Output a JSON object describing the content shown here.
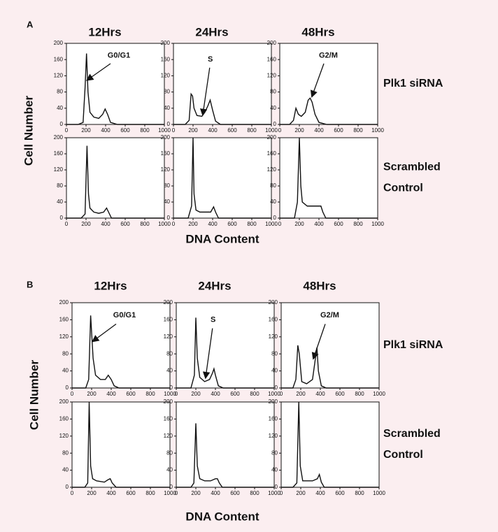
{
  "figures": [
    {
      "label": "A",
      "columns": [
        "12Hrs",
        "24Hrs",
        "48Hrs"
      ],
      "rows": [
        [
          "Plk1 siRNA"
        ],
        [
          "Scrambled",
          "Control"
        ]
      ],
      "ylabel": "Cell Number",
      "xlabel": "DNA Content"
    },
    {
      "label": "B",
      "columns": [
        "12Hrs",
        "24Hrs",
        "48Hrs"
      ],
      "rows": [
        [
          "Plk1 siRNA"
        ],
        [
          "Scrambled",
          "Control"
        ]
      ],
      "ylabel": "Cell Number",
      "xlabel": "DNA Content"
    }
  ],
  "chart_data": [
    {
      "type": "line",
      "color": "#111111",
      "x": [
        0,
        120,
        170,
        190,
        205,
        220,
        240,
        280,
        330,
        370,
        395,
        420,
        450,
        520,
        1000
      ],
      "values": [
        0,
        0,
        5,
        90,
        175,
        80,
        30,
        18,
        15,
        25,
        38,
        25,
        5,
        0,
        0
      ],
      "xlim": [
        0,
        1000
      ],
      "ylim": [
        0,
        200
      ],
      "xticks": [
        0,
        200,
        400,
        600,
        800,
        1000
      ],
      "yticks": [
        0,
        40,
        80,
        120,
        160,
        200
      ],
      "annotation": "G0/G1"
    },
    {
      "type": "line",
      "color": "#111111",
      "x": [
        0,
        120,
        160,
        180,
        195,
        210,
        240,
        290,
        320,
        350,
        375,
        400,
        430,
        480,
        1000
      ],
      "values": [
        0,
        0,
        10,
        75,
        70,
        40,
        22,
        20,
        30,
        45,
        60,
        35,
        8,
        0,
        0
      ],
      "xlim": [
        0,
        1000
      ],
      "ylim": [
        0,
        200
      ],
      "xticks": [
        0,
        200,
        400,
        600,
        800,
        1000
      ],
      "yticks": [
        0,
        40,
        80,
        120,
        160,
        200
      ],
      "annotation": "S"
    },
    {
      "type": "line",
      "color": "#111111",
      "x": [
        0,
        100,
        140,
        165,
        190,
        220,
        260,
        290,
        310,
        330,
        360,
        400,
        480,
        1000
      ],
      "values": [
        0,
        0,
        10,
        40,
        25,
        20,
        30,
        60,
        65,
        55,
        25,
        5,
        0,
        0
      ],
      "xlim": [
        0,
        1000
      ],
      "ylim": [
        0,
        200
      ],
      "xticks": [
        0,
        200,
        400,
        600,
        800,
        1000
      ],
      "yticks": [
        0,
        40,
        80,
        120,
        160,
        200
      ],
      "annotation": "G2/M"
    },
    {
      "type": "line",
      "color": "#111111",
      "x": [
        0,
        150,
        190,
        210,
        225,
        240,
        280,
        330,
        380,
        410,
        430,
        460,
        1000
      ],
      "values": [
        0,
        0,
        10,
        180,
        60,
        25,
        15,
        12,
        15,
        25,
        15,
        0,
        0
      ],
      "xlim": [
        0,
        1000
      ],
      "ylim": [
        0,
        200
      ],
      "xticks": [
        0,
        200,
        400,
        600,
        800,
        1000
      ],
      "yticks": [
        0,
        40,
        80,
        120,
        160,
        200
      ]
    },
    {
      "type": "line",
      "color": "#111111",
      "x": [
        0,
        150,
        185,
        200,
        210,
        230,
        270,
        320,
        380,
        410,
        430,
        460,
        1000
      ],
      "values": [
        0,
        0,
        30,
        200,
        60,
        20,
        15,
        15,
        15,
        28,
        15,
        0,
        0
      ],
      "xlim": [
        0,
        1000
      ],
      "ylim": [
        0,
        200
      ],
      "xticks": [
        0,
        200,
        400,
        600,
        800,
        1000
      ],
      "yticks": [
        0,
        40,
        80,
        120,
        160,
        200
      ]
    },
    {
      "type": "line",
      "color": "#111111",
      "x": [
        0,
        150,
        180,
        200,
        215,
        230,
        280,
        330,
        380,
        420,
        440,
        470,
        1000
      ],
      "values": [
        0,
        0,
        40,
        200,
        80,
        40,
        30,
        30,
        30,
        30,
        15,
        0,
        0
      ],
      "xlim": [
        0,
        1000
      ],
      "ylim": [
        0,
        200
      ],
      "xticks": [
        0,
        200,
        400,
        600,
        800,
        1000
      ],
      "yticks": [
        0,
        40,
        80,
        120,
        160,
        200
      ]
    },
    {
      "type": "line",
      "color": "#111111",
      "x": [
        0,
        140,
        170,
        190,
        200,
        215,
        240,
        290,
        340,
        370,
        400,
        430,
        480,
        1000
      ],
      "values": [
        0,
        0,
        20,
        170,
        130,
        70,
        30,
        20,
        20,
        30,
        20,
        5,
        0,
        0
      ],
      "xlim": [
        0,
        1000
      ],
      "ylim": [
        0,
        200
      ],
      "xticks": [
        0,
        200,
        400,
        600,
        800,
        1000
      ],
      "yticks": [
        0,
        40,
        80,
        120,
        160,
        200
      ],
      "annotation": "G0/G1"
    },
    {
      "type": "line",
      "color": "#111111",
      "x": [
        0,
        150,
        185,
        200,
        215,
        240,
        290,
        340,
        370,
        385,
        400,
        430,
        480,
        1000
      ],
      "values": [
        0,
        0,
        30,
        165,
        70,
        25,
        15,
        20,
        35,
        45,
        30,
        5,
        0,
        0
      ],
      "xlim": [
        0,
        1000
      ],
      "ylim": [
        0,
        200
      ],
      "xticks": [
        0,
        200,
        400,
        600,
        800,
        1000
      ],
      "yticks": [
        0,
        40,
        80,
        120,
        160,
        200
      ],
      "annotation": "S"
    },
    {
      "type": "line",
      "color": "#111111",
      "x": [
        0,
        120,
        150,
        170,
        185,
        210,
        260,
        320,
        350,
        365,
        380,
        410,
        460,
        1000
      ],
      "values": [
        0,
        0,
        20,
        100,
        80,
        15,
        10,
        20,
        70,
        95,
        40,
        5,
        0,
        0
      ],
      "xlim": [
        0,
        1000
      ],
      "ylim": [
        0,
        200
      ],
      "xticks": [
        0,
        200,
        400,
        600,
        800,
        1000
      ],
      "yticks": [
        0,
        40,
        80,
        120,
        160,
        200
      ],
      "annotation": "G2/M"
    },
    {
      "type": "line",
      "color": "#111111",
      "x": [
        0,
        130,
        160,
        175,
        190,
        210,
        250,
        330,
        370,
        390,
        410,
        450,
        1000
      ],
      "values": [
        0,
        0,
        10,
        200,
        50,
        20,
        15,
        12,
        18,
        20,
        10,
        0,
        0
      ],
      "xlim": [
        0,
        1000
      ],
      "ylim": [
        0,
        200
      ],
      "xticks": [
        0,
        200,
        400,
        600,
        800,
        1000
      ],
      "yticks": [
        0,
        40,
        80,
        120,
        160,
        200
      ]
    },
    {
      "type": "line",
      "color": "#111111",
      "x": [
        0,
        150,
        180,
        200,
        215,
        240,
        290,
        350,
        400,
        420,
        440,
        470,
        1000
      ],
      "values": [
        0,
        0,
        10,
        150,
        50,
        20,
        15,
        15,
        20,
        20,
        10,
        0,
        0
      ],
      "xlim": [
        0,
        1000
      ],
      "ylim": [
        0,
        200
      ],
      "xticks": [
        0,
        200,
        400,
        600,
        800,
        1000
      ],
      "yticks": [
        0,
        40,
        80,
        120,
        160,
        200
      ]
    },
    {
      "type": "line",
      "color": "#111111",
      "x": [
        0,
        120,
        160,
        180,
        195,
        220,
        260,
        320,
        370,
        390,
        410,
        440,
        1000
      ],
      "values": [
        0,
        0,
        10,
        200,
        50,
        15,
        15,
        15,
        20,
        30,
        12,
        0,
        0
      ],
      "xlim": [
        0,
        1000
      ],
      "ylim": [
        0,
        200
      ],
      "xticks": [
        0,
        200,
        400,
        600,
        800,
        1000
      ],
      "yticks": [
        0,
        40,
        80,
        120,
        160,
        200
      ]
    }
  ]
}
